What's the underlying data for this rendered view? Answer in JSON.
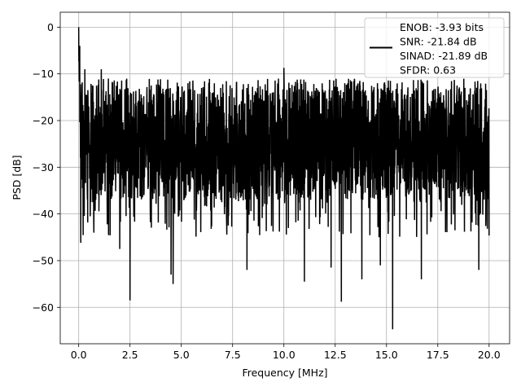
{
  "chart_data": {
    "type": "line",
    "title": "",
    "xlabel": "Frequency [MHz]",
    "ylabel": "PSD [dB]",
    "xlim": [
      -0.9,
      21.0
    ],
    "ylim": [
      -67.8,
      3.2
    ],
    "xticks": [
      0.0,
      2.5,
      5.0,
      7.5,
      10.0,
      12.5,
      15.0,
      17.5,
      20.0
    ],
    "xtick_labels": [
      "0.0",
      "2.5",
      "5.0",
      "7.5",
      "10.0",
      "12.5",
      "15.0",
      "17.5",
      "20.0"
    ],
    "yticks": [
      0,
      -10,
      -20,
      -30,
      -40,
      -50,
      -60
    ],
    "ytick_labels": [
      "0",
      "−10",
      "−20",
      "−30",
      "−40",
      "−50",
      "−60"
    ],
    "grid": true,
    "legend_position": "upper right",
    "series": [
      {
        "name": "ENOB: -3.93 bits\nSNR: -21.84 dB\nSINAD: -21.89 dB\nSFDR: 0.63",
        "color": "#000000",
        "x_range": [
          0.0,
          20.0
        ],
        "typical_band_db": [
          -37.0,
          -13.0
        ],
        "peak_db": 0.0,
        "min_db": -64.7,
        "notable_peaks": [
          {
            "x": 0.0,
            "y": 0.0
          },
          {
            "x": 0.05,
            "y": -4.0
          },
          {
            "x": 0.3,
            "y": -9.0
          },
          {
            "x": 1.1,
            "y": -9.0
          },
          {
            "x": 10.0,
            "y": -8.7
          },
          {
            "x": 13.7,
            "y": -11.5
          }
        ],
        "notable_dips": [
          {
            "x": 0.1,
            "y": -46.2
          },
          {
            "x": 2.0,
            "y": -47.5
          },
          {
            "x": 2.5,
            "y": -58.5
          },
          {
            "x": 4.5,
            "y": -53.0
          },
          {
            "x": 4.6,
            "y": -55.0
          },
          {
            "x": 8.2,
            "y": -52.0
          },
          {
            "x": 11.0,
            "y": -54.5
          },
          {
            "x": 12.3,
            "y": -51.5
          },
          {
            "x": 12.8,
            "y": -58.8
          },
          {
            "x": 13.8,
            "y": -54.0
          },
          {
            "x": 14.7,
            "y": -51.0
          },
          {
            "x": 15.3,
            "y": -64.7
          },
          {
            "x": 16.7,
            "y": -54.0
          },
          {
            "x": 19.5,
            "y": -52.0
          }
        ]
      }
    ]
  }
}
